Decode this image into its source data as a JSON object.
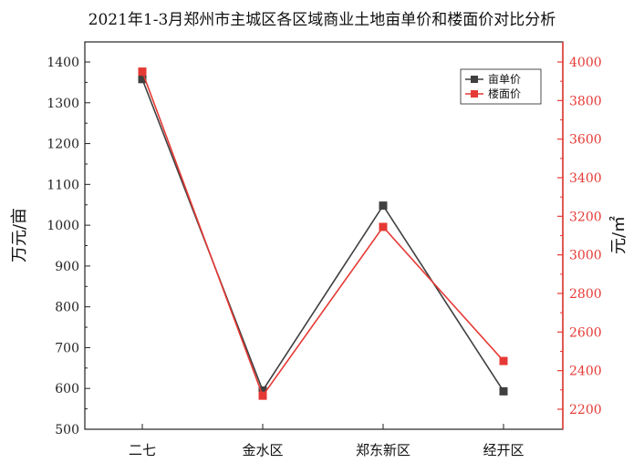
{
  "chart_data": {
    "type": "line",
    "title": "2021年1-3月郑州市主城区各区域商业土地亩单价和楼面价对比分析",
    "categories": [
      "二七",
      "金水区",
      "郑东新区",
      "经开区"
    ],
    "ylabel_left": "万元/亩",
    "ylabel_right": "元/㎡",
    "ylim_left": [
      500,
      1400
    ],
    "yticks_left": [
      500,
      600,
      700,
      800,
      900,
      1000,
      1100,
      1200,
      1300,
      1400
    ],
    "ylim_right": [
      2140,
      4050
    ],
    "yticks_right": [
      2200,
      2400,
      2600,
      2800,
      3000,
      3200,
      3400,
      3600,
      3800,
      4000
    ],
    "legend_position": "top-right",
    "grid": false,
    "series": [
      {
        "name": "亩单价",
        "axis": "left",
        "color": "#404040",
        "marker": "square",
        "values": [
          1358,
          595,
          1048,
          593
        ]
      },
      {
        "name": "楼面价",
        "axis": "right",
        "color": "#e53935",
        "marker": "square",
        "values": [
          3950,
          2270,
          3145,
          2450
        ]
      }
    ]
  }
}
